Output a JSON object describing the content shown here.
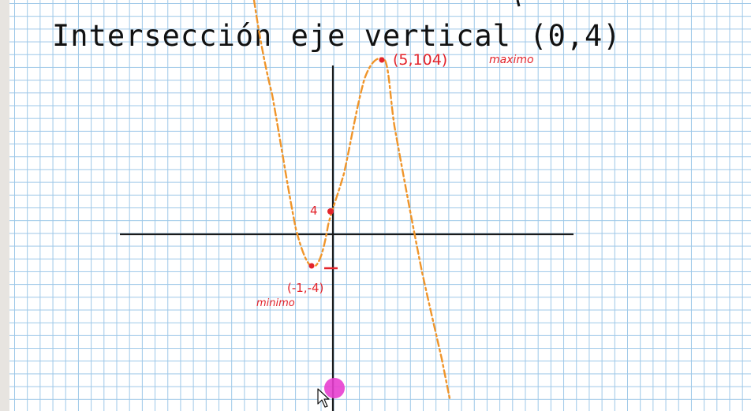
{
  "title_text": "Intersección eje vertical (0,4)",
  "annotations": {
    "y_intercept_label": "4",
    "max_point_label": "(5,104)",
    "max_word": "maximo",
    "min_point_label": "(-1,-4)",
    "min_word": "minimo"
  },
  "colors": {
    "grid": "#9cc7e8",
    "axes": "#1a1a1a",
    "curve": "#f0952a",
    "annotation": "#e3242b",
    "cursor_highlight": "#e83fd0"
  },
  "cursor": {
    "icon": "arrow-pointer-icon"
  }
}
